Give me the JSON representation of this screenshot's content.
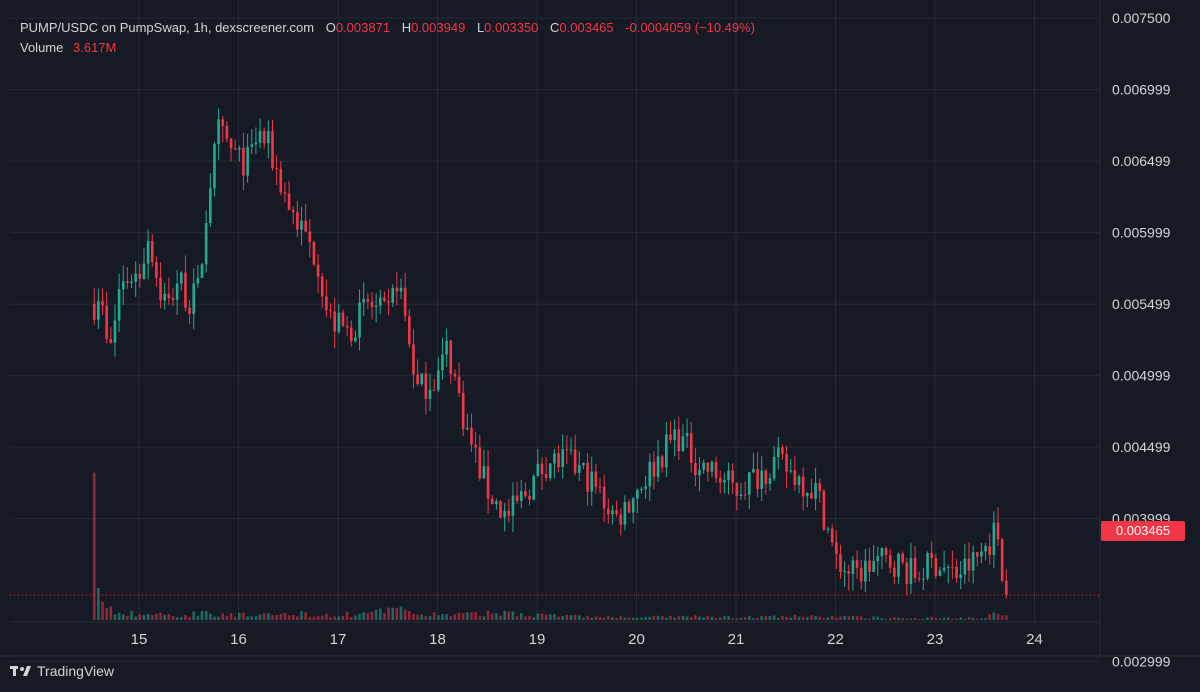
{
  "legend": {
    "symbol": "PUMP/USDC on PumpSwap, 1h, dexscreener.com",
    "o_label": "O",
    "o_value": "0.003871",
    "h_label": "H",
    "h_value": "0.003949",
    "l_label": "L",
    "l_value": "0.003350",
    "c_label": "C",
    "c_value": "0.003465",
    "change": "-0.0004059 (−10.49%)",
    "volume_label": "Volume",
    "volume_value": "3.617M"
  },
  "footer": {
    "brand": "TradingView",
    "logo_icon": "tradingview-logo-icon"
  },
  "last_price_label": "0.003465",
  "colors": {
    "up": "#22ab94",
    "down": "#f23645",
    "background": "#161a25",
    "grid": "#262a35",
    "text": "#d1d4dc"
  },
  "chart_data": {
    "type": "candlestick",
    "interval": "1h",
    "grid": true,
    "y_axis_position": "right",
    "ylim": [
      0.00265,
      0.0075
    ],
    "y_ticks": [
      "0.007500",
      "0.006999",
      "0.006499",
      "0.005999",
      "0.005499",
      "0.004999",
      "0.004499",
      "0.003999",
      "0.002999"
    ],
    "x_ticks": [
      "15",
      "16",
      "17",
      "18",
      "19",
      "20",
      "21",
      "22",
      "23",
      "24"
    ],
    "x_range": [
      14.55,
      23.7
    ],
    "last_price": 0.003465,
    "volume_max": 3.617,
    "price_path": [
      [
        14.55,
        0.0055
      ],
      [
        14.6,
        0.0056
      ],
      [
        14.7,
        0.0051
      ],
      [
        14.8,
        0.0056
      ],
      [
        14.9,
        0.0057
      ],
      [
        15.0,
        0.0057
      ],
      [
        15.1,
        0.006
      ],
      [
        15.2,
        0.0056
      ],
      [
        15.3,
        0.0055
      ],
      [
        15.4,
        0.0057
      ],
      [
        15.5,
        0.0055
      ],
      [
        15.6,
        0.0056
      ],
      [
        15.7,
        0.0063
      ],
      [
        15.8,
        0.0067
      ],
      [
        15.9,
        0.0066
      ],
      [
        16.0,
        0.0065
      ],
      [
        16.1,
        0.0065
      ],
      [
        16.2,
        0.0067
      ],
      [
        16.3,
        0.0066
      ],
      [
        16.5,
        0.0062
      ],
      [
        16.8,
        0.0058
      ],
      [
        16.9,
        0.0054
      ],
      [
        17.1,
        0.0053
      ],
      [
        17.3,
        0.0055
      ],
      [
        17.5,
        0.0054
      ],
      [
        17.6,
        0.0057
      ],
      [
        17.7,
        0.0053
      ],
      [
        17.8,
        0.0049
      ],
      [
        18.0,
        0.005
      ],
      [
        18.1,
        0.0052
      ],
      [
        18.2,
        0.0049
      ],
      [
        18.3,
        0.0046
      ],
      [
        18.5,
        0.0042
      ],
      [
        18.6,
        0.0041
      ],
      [
        18.7,
        0.004
      ],
      [
        18.9,
        0.0042
      ],
      [
        19.1,
        0.0044
      ],
      [
        19.3,
        0.0044
      ],
      [
        19.5,
        0.0043
      ],
      [
        19.7,
        0.0041
      ],
      [
        19.8,
        0.004
      ],
      [
        20.0,
        0.0042
      ],
      [
        20.2,
        0.0044
      ],
      [
        20.4,
        0.0046
      ],
      [
        20.6,
        0.0044
      ],
      [
        20.8,
        0.0043
      ],
      [
        21.0,
        0.0042
      ],
      [
        21.2,
        0.0043
      ],
      [
        21.4,
        0.0044
      ],
      [
        21.6,
        0.0043
      ],
      [
        21.8,
        0.0042
      ],
      [
        21.9,
        0.004
      ],
      [
        22.0,
        0.0037
      ],
      [
        22.2,
        0.0036
      ],
      [
        22.4,
        0.0037
      ],
      [
        22.6,
        0.0037
      ],
      [
        22.8,
        0.0036
      ],
      [
        23.0,
        0.0037
      ],
      [
        23.2,
        0.0036
      ],
      [
        23.4,
        0.0037
      ],
      [
        23.55,
        0.00385
      ],
      [
        23.6,
        0.0039
      ],
      [
        23.65,
        0.00387
      ],
      [
        23.7,
        0.003465
      ]
    ],
    "volume_profile": [
      [
        14.55,
        3.5
      ],
      [
        14.6,
        0.4
      ],
      [
        14.7,
        0.3
      ],
      [
        14.8,
        0.15
      ],
      [
        15.0,
        0.15
      ],
      [
        15.5,
        0.1
      ],
      [
        15.6,
        0.2
      ],
      [
        15.8,
        0.15
      ],
      [
        16.2,
        0.1
      ],
      [
        16.6,
        0.15
      ],
      [
        17.0,
        0.12
      ],
      [
        17.5,
        0.2
      ],
      [
        17.6,
        0.25
      ],
      [
        17.8,
        0.15
      ],
      [
        18.2,
        0.12
      ],
      [
        18.5,
        0.15
      ],
      [
        18.7,
        0.18
      ],
      [
        19.0,
        0.12
      ],
      [
        19.5,
        0.08
      ],
      [
        20.0,
        0.06
      ],
      [
        20.5,
        0.08
      ],
      [
        21.0,
        0.06
      ],
      [
        21.5,
        0.08
      ],
      [
        22.0,
        0.08
      ],
      [
        22.5,
        0.05
      ],
      [
        23.0,
        0.05
      ],
      [
        23.5,
        0.06
      ],
      [
        23.7,
        0.22
      ]
    ]
  }
}
